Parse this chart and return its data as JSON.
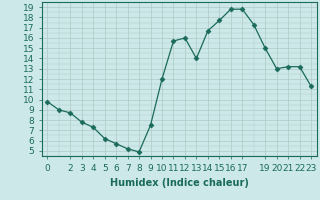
{
  "x": [
    0,
    1,
    2,
    3,
    4,
    5,
    6,
    7,
    8,
    9,
    10,
    11,
    12,
    13,
    14,
    15,
    16,
    17,
    18,
    19,
    20,
    21,
    22,
    23
  ],
  "y": [
    9.8,
    9.0,
    8.7,
    7.8,
    7.3,
    6.2,
    5.7,
    5.2,
    4.9,
    7.5,
    12.0,
    15.7,
    16.0,
    14.0,
    16.7,
    17.7,
    18.8,
    18.8,
    17.3,
    15.0,
    13.0,
    13.2,
    13.2,
    11.3
  ],
  "line_color": "#1a6b5a",
  "marker": "D",
  "markersize": 2.5,
  "bg_color": "#cce8e8",
  "grid_color_major": "#b0c8c8",
  "grid_color_minor": "#d8e8e8",
  "xlabel": "Humidex (Indice chaleur)",
  "xlabel_fontsize": 7,
  "tick_fontsize": 6.5,
  "xlim": [
    -0.5,
    23.5
  ],
  "ylim": [
    4.5,
    19.5
  ],
  "yticks": [
    5,
    6,
    7,
    8,
    9,
    10,
    11,
    12,
    13,
    14,
    15,
    16,
    17,
    18,
    19
  ],
  "xticks": [
    0,
    2,
    3,
    4,
    5,
    6,
    7,
    8,
    9,
    10,
    11,
    12,
    13,
    14,
    15,
    16,
    17,
    19,
    20,
    21,
    22,
    23
  ]
}
